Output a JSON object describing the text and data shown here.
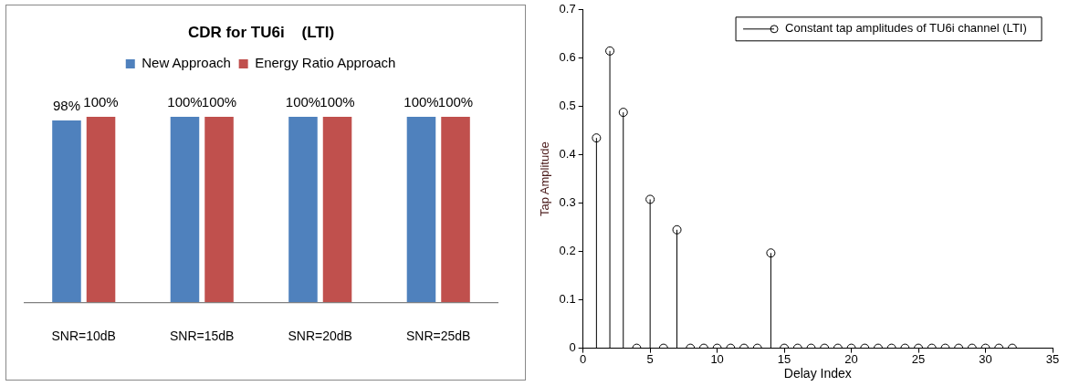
{
  "chart_data": [
    {
      "type": "bar",
      "title": "CDR for TU6i    (LTI)",
      "categories": [
        "SNR=10dB",
        "SNR=15dB",
        "SNR=20dB",
        "SNR=25dB"
      ],
      "series": [
        {
          "name": "New Approach",
          "color": "#4f81bd",
          "values": [
            98,
            100,
            100,
            100
          ],
          "value_labels": [
            "98%",
            "100%",
            "100%",
            "100%"
          ]
        },
        {
          "name": "Energy Ratio Approach",
          "color": "#c0504d",
          "values": [
            100,
            100,
            100,
            100
          ],
          "value_labels": [
            "100%",
            "100%",
            "100%",
            "100%"
          ]
        }
      ],
      "legend": "top"
    },
    {
      "type": "lollipop",
      "xlabel": "Delay Index",
      "ylabel": "Tap Amplitude",
      "x": [
        1,
        2,
        3,
        4,
        5,
        6,
        7,
        8,
        9,
        10,
        11,
        12,
        13,
        14,
        15,
        16,
        17,
        18,
        19,
        20,
        21,
        22,
        23,
        24,
        25,
        26,
        27,
        28,
        29,
        30,
        31,
        32
      ],
      "series": [
        {
          "name": "Constant tap amplitudes of TU6i channel (LTI)",
          "color": "#000000",
          "values": [
            0.435,
            0.615,
            0.488,
            0,
            0.308,
            0,
            0.245,
            0,
            0,
            0,
            0,
            0,
            0,
            0.197,
            0,
            0,
            0,
            0,
            0,
            0,
            0,
            0,
            0,
            0,
            0,
            0,
            0,
            0,
            0,
            0,
            0,
            0
          ]
        }
      ],
      "xlim": [
        0,
        35
      ],
      "xticks": [
        0,
        5,
        10,
        15,
        20,
        25,
        30,
        35
      ],
      "ylim": [
        0,
        0.7
      ],
      "yticks": [
        0,
        0.1,
        0.2,
        0.3,
        0.4,
        0.5,
        0.6,
        0.7
      ],
      "marker": "circle",
      "legend": "top right",
      "grid": false
    }
  ]
}
